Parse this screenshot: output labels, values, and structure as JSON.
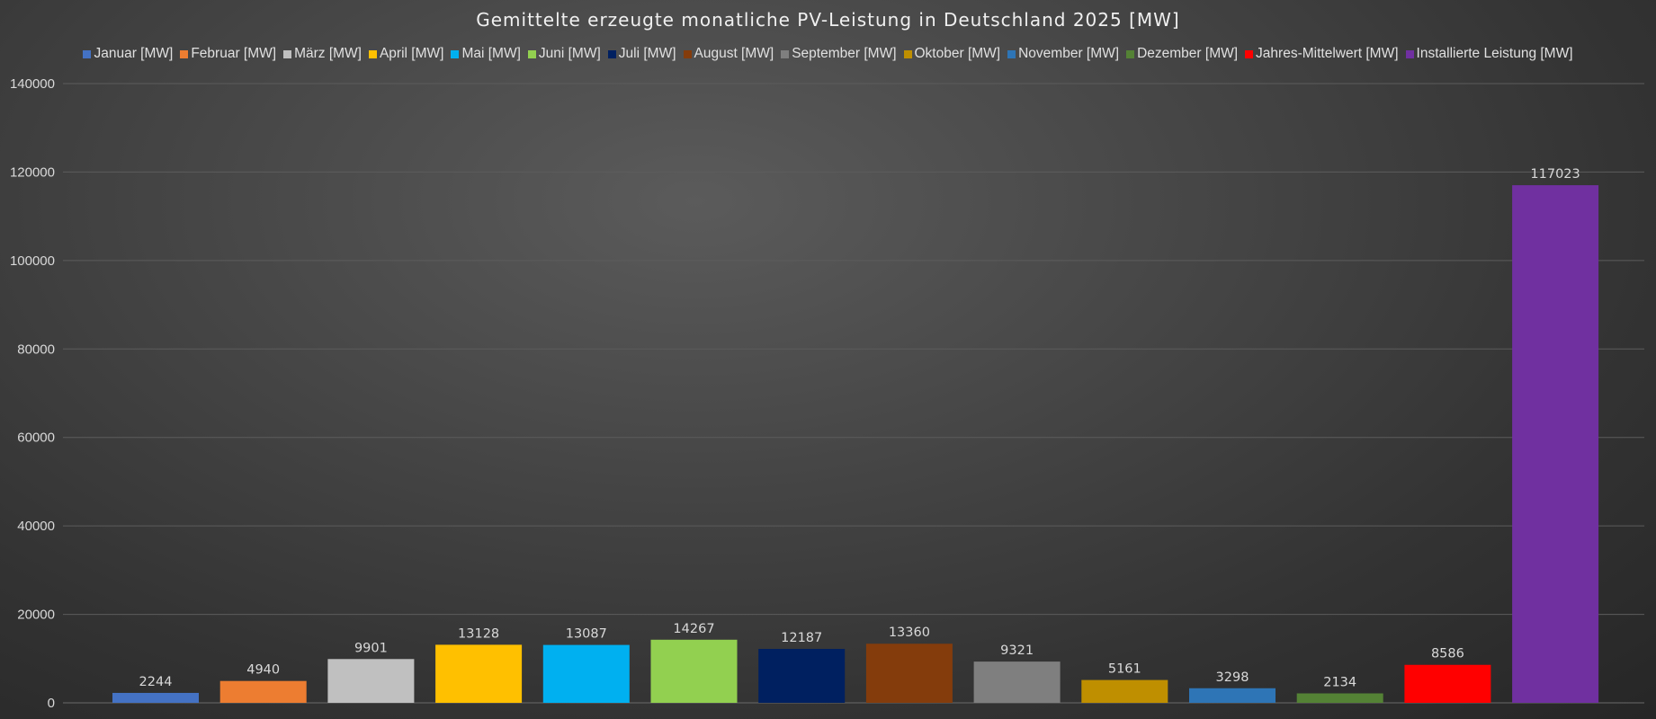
{
  "chart_data": {
    "type": "bar",
    "title": "Gemittelte erzeugte monatliche PV-Leistung in Deutschland 2025 [MW]",
    "xlabel": "",
    "ylabel": "",
    "ylim": [
      0,
      140000
    ],
    "yticks": [
      0,
      20000,
      40000,
      60000,
      80000,
      100000,
      120000,
      140000
    ],
    "grid": "horizontal",
    "legend_position": "top",
    "series": [
      {
        "name": "Januar [MW]",
        "value": 2244,
        "color": "#4472C4"
      },
      {
        "name": "Februar [MW]",
        "value": 4940,
        "color": "#ED7D31"
      },
      {
        "name": "März [MW]",
        "value": 9901,
        "color": "#C0C0C0"
      },
      {
        "name": "April [MW]",
        "value": 13128,
        "color": "#FFC000"
      },
      {
        "name": "Mai [MW]",
        "value": 13087,
        "color": "#00B0F0"
      },
      {
        "name": "Juni [MW]",
        "value": 14267,
        "color": "#92D050"
      },
      {
        "name": "Juli [MW]",
        "value": 12187,
        "color": "#002060"
      },
      {
        "name": "August [MW]",
        "value": 13360,
        "color": "#843C0C"
      },
      {
        "name": "September [MW]",
        "value": 9321,
        "color": "#7F7F7F"
      },
      {
        "name": "Oktober [MW]",
        "value": 5161,
        "color": "#BF8F00"
      },
      {
        "name": "November [MW]",
        "value": 3298,
        "color": "#2E75B6"
      },
      {
        "name": "Dezember [MW]",
        "value": 2134,
        "color": "#548235"
      },
      {
        "name": "Jahres-Mittelwert [MW]",
        "value": 8586,
        "color": "#FF0000"
      },
      {
        "name": "Installierte Leistung [MW]",
        "value": 117023,
        "color": "#7030A0"
      }
    ]
  }
}
